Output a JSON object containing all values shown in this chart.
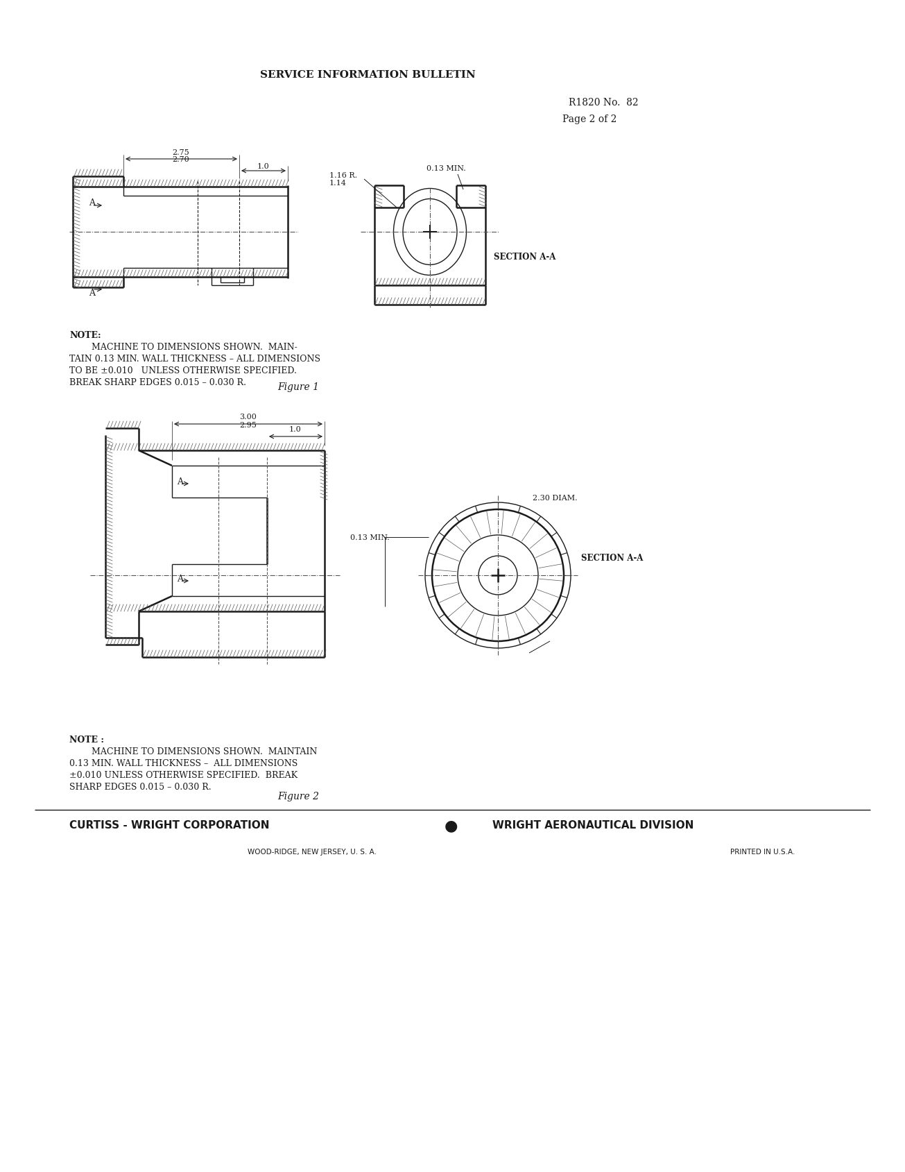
{
  "page_background": "#ffffff",
  "title": "SERVICE INFORMATION BULLETIN",
  "bulletin_number": "R1820 No.  82",
  "page_number": "Page 2 of 2",
  "note1_lines": [
    "NOTE:",
    "        MACHINE TO DIMENSIONS SHOWN.  MAIN-",
    "TAIN 0.13 MIN. WALL THICKNESS – ALL DIMENSIONS",
    "TO BE ±0.010   UNLESS OTHERWISE SPECIFIED.",
    "BREAK SHARP EDGES 0.015 – 0.030 R."
  ],
  "figure1_label": "Figure 1",
  "note2_lines": [
    "NOTE :",
    "        MACHINE TO DIMENSIONS SHOWN.  MAINTAIN",
    "0.13 MIN. WALL THICKNESS –  ALL DIMENSIONS",
    "±0.010 UNLESS OTHERWISE SPECIFIED.  BREAK",
    "SHARP EDGES 0.015 – 0.030 R."
  ],
  "figure2_label": "Figure 2",
  "footer_company": "CURTISS - WRIGHT CORPORATION",
  "footer_bullet": "●",
  "footer_division": "WRIGHT AERONAUTICAL DIVISION",
  "footer_address": "WOOD-RIDGE, NEW JERSEY, U. S. A.",
  "footer_printed": "PRINTED IN U.S.A.",
  "dim1_top": "2.75",
  "dim1_bot": "2.70",
  "dim1_right": "1.0",
  "dim1_radius": "1.16 R.",
  "dim1_radius2": "1.14",
  "dim1_min": "0.13 MIN.",
  "sec_label1": "SECTION A-A",
  "dim2_top": "3.00",
  "dim2_bot": "2.95",
  "dim2_right": "1.0",
  "dim2_diam": "2.30 DIAM.",
  "dim2_min": "0.13 MIN.",
  "sec_label2": "SECTION A-A",
  "text_color": "#1a1a1a",
  "line_color": "#1a1a1a",
  "hatch_color": "#555555"
}
